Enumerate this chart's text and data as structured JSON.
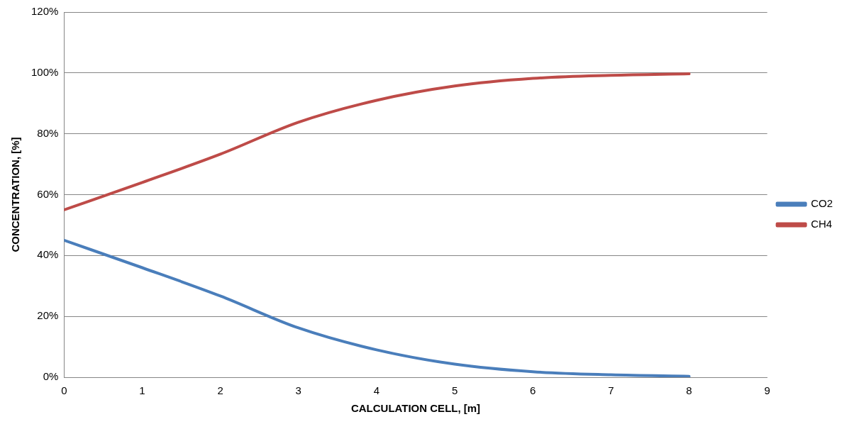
{
  "chart_data": {
    "type": "line",
    "xlabel": "CALCULATION CELL, [m]",
    "ylabel": "CONCENTRATION, [%]",
    "x": [
      0,
      1,
      2,
      3,
      4,
      5,
      6,
      7,
      8
    ],
    "series": [
      {
        "name": "CO2",
        "color": "#4a7ebb",
        "values": [
          45,
          36,
          26.7,
          16.2,
          9,
          4.3,
          1.8,
          0.8,
          0.3
        ]
      },
      {
        "name": "CH4",
        "color": "#be4b48",
        "values": [
          55,
          64,
          73.3,
          83.8,
          91,
          95.7,
          98.2,
          99.2,
          99.7
        ]
      }
    ],
    "xlim": [
      0,
      9
    ],
    "xticks": [
      0,
      1,
      2,
      3,
      4,
      5,
      6,
      7,
      8,
      9
    ],
    "ylim": [
      0,
      120
    ],
    "yticks": [
      {
        "value": 0,
        "label": "0%"
      },
      {
        "value": 20,
        "label": "20%"
      },
      {
        "value": 40,
        "label": "40%"
      },
      {
        "value": 60,
        "label": "60%"
      },
      {
        "value": 80,
        "label": "80%"
      },
      {
        "value": 100,
        "label": "100%"
      },
      {
        "value": 120,
        "label": "120%"
      }
    ],
    "grid": "y",
    "legend": "right",
    "marker": "none",
    "line_style": "solid"
  }
}
